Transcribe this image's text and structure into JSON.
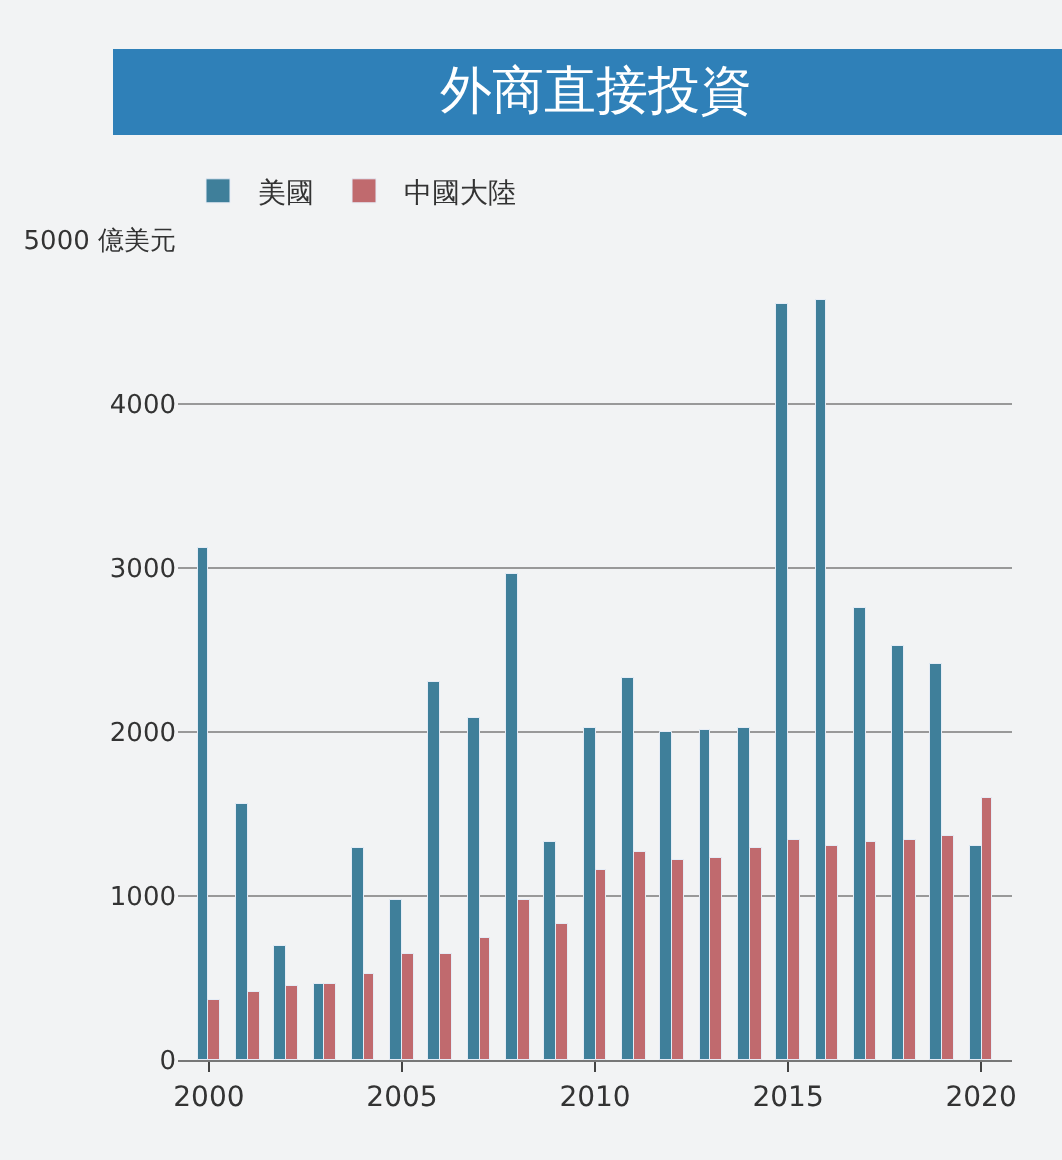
{
  "chart_data": {
    "type": "bar",
    "title": "外商直接投資",
    "x": [
      2000,
      2001,
      2002,
      2003,
      2004,
      2005,
      2006,
      2007,
      2008,
      2009,
      2010,
      2011,
      2012,
      2013,
      2014,
      2015,
      2016,
      2017,
      2018,
      2019,
      2020
    ],
    "series": [
      {
        "name": "美國",
        "color": "#3f7f9a",
        "values": [
          3120,
          1560,
          700,
          460,
          1290,
          980,
          2310,
          2080,
          2960,
          1330,
          2020,
          2330,
          2000,
          2010,
          2030,
          4610,
          4640,
          2760,
          2520,
          2420,
          1300
        ]
      },
      {
        "name": "中國大陸",
        "color": "#c06a6e",
        "values": [
          370,
          420,
          450,
          460,
          530,
          650,
          650,
          740,
          980,
          830,
          1160,
          1270,
          1220,
          1230,
          1290,
          1340,
          1310,
          1330,
          1340,
          1370,
          1600
        ]
      }
    ],
    "xlim": [
      1999.2,
      2020.8
    ],
    "xticks": [
      2000,
      2005,
      2010,
      2015,
      2020
    ],
    "ylim": [
      0,
      5000
    ],
    "yticks": [
      0,
      1000,
      2000,
      3000,
      4000,
      {
        "value": 5000,
        "label": "5000 億美元"
      }
    ],
    "grid": "y",
    "legend": "top left"
  }
}
